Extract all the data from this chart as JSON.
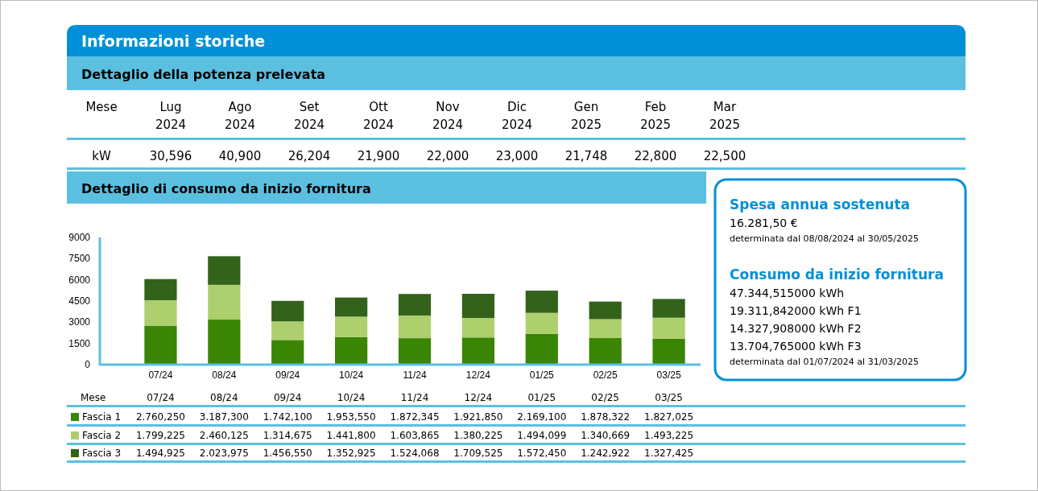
{
  "chart_data": [
    {
      "type": "other",
      "title": "Informazioni storiche",
      "subtitle": "Dettaglio della potenza prelevata",
      "xlabel": "Mese",
      "ylabel": "kW",
      "categories": [
        "Lug 2024",
        "Ago 2024",
        "Set 2024",
        "Ott 2024",
        "Nov 2024",
        "Dic 2024",
        "Gen 2025",
        "Feb 2025",
        "Mar 2025"
      ],
      "value_labels": [
        "30,596",
        "40,900",
        "26,204",
        "21,900",
        "22,000",
        "23,000",
        "21,748",
        "22,800",
        "22,500"
      ]
    },
    {
      "type": "bar",
      "stacked": true,
      "legend": "bottom left",
      "title": "Dettaglio di consumo da inizio fornitura",
      "xlabel": "Mese",
      "categories": [
        "07/24",
        "08/24",
        "09/24",
        "10/24",
        "11/24",
        "12/24",
        "01/25",
        "02/25",
        "03/25"
      ],
      "series": [
        {
          "name": "Fascia 1",
          "color": "#3b8505",
          "values": [
            2760.25,
            3187.3,
            1742.1,
            1953.55,
            1872.345,
            1921.85,
            2169.1,
            1878.322,
            1827.025
          ],
          "value_labels": [
            "2.760,250",
            "3.187,300",
            "1.742,100",
            "1.953,550",
            "1.872,345",
            "1.921,850",
            "2.169,100",
            "1.878,322",
            "1.827,025"
          ]
        },
        {
          "name": "Fascia 2",
          "color": "#aecf6e",
          "values": [
            1799.225,
            2460.125,
            1314.675,
            1441.8,
            1603.865,
            1380.225,
            1494.099,
            1340.669,
            1493.225
          ],
          "value_labels": [
            "1.799,225",
            "2.460,125",
            "1.314,675",
            "1.441,800",
            "1.603,865",
            "1.380,225",
            "1.494,099",
            "1.340,669",
            "1.493,225"
          ]
        },
        {
          "name": "Fascia 3",
          "color": "#33621b",
          "values": [
            1494.925,
            2023.975,
            1456.55,
            1352.925,
            1524.068,
            1709.525,
            1572.45,
            1242.922,
            1327.425
          ],
          "value_labels": [
            "1.494,925",
            "2.023,975",
            "1.456,550",
            "1.352,925",
            "1.524,068",
            "1.709,525",
            "1.572,450",
            "1.242,922",
            "1.327,425"
          ]
        }
      ],
      "ylim": [
        0,
        9000
      ],
      "yticks": [
        0,
        1500,
        3000,
        4500,
        6000,
        7500,
        9000
      ]
    },
    {
      "type": "other",
      "title": "Spesa annua sostenuta",
      "annotations": [
        "16.281,50 €",
        "determinata dal 08/08/2024 al 30/05/2025"
      ]
    },
    {
      "type": "other",
      "title": "Consumo da inizio fornitura",
      "annotations": [
        "47.344,515000 kWh",
        "19.311,842000 kWh F1",
        "14.327,908000 kWh F2",
        "13.704,765000 kWh F3",
        "determinata dal 01/07/2024 al 31/03/2025"
      ]
    }
  ]
}
